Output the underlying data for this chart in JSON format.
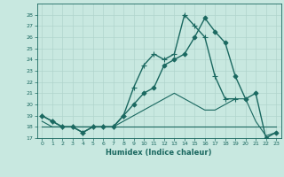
{
  "xlabel": "Humidex (Indice chaleur)",
  "background_color": "#c8e8e0",
  "grid_color": "#b0d4cc",
  "line_color": "#1a6860",
  "ylim": [
    17,
    29
  ],
  "xlim": [
    -0.5,
    23.5
  ],
  "yticks": [
    17,
    18,
    19,
    20,
    21,
    22,
    23,
    24,
    25,
    26,
    27,
    28
  ],
  "xticks": [
    0,
    1,
    2,
    3,
    4,
    5,
    6,
    7,
    8,
    9,
    10,
    11,
    12,
    13,
    14,
    15,
    16,
    17,
    18,
    19,
    20,
    21,
    22,
    23
  ],
  "series": [
    {
      "x": [
        0,
        1,
        2,
        3,
        4,
        5,
        6,
        7,
        8,
        9,
        10,
        11,
        12,
        13,
        14,
        15,
        16,
        17,
        18,
        19,
        20,
        21,
        22,
        23
      ],
      "y": [
        19,
        18.5,
        18,
        18,
        17.5,
        18,
        18,
        18,
        19,
        20,
        21,
        21.5,
        23.5,
        24,
        24.5,
        26,
        27.7,
        26.5,
        25.5,
        22.5,
        20.5,
        21,
        17,
        17.5
      ],
      "marker": "D",
      "markersize": 2.5,
      "linewidth": 1.0
    },
    {
      "x": [
        0,
        1,
        2,
        3,
        4,
        5,
        6,
        7,
        8,
        9,
        10,
        11,
        12,
        13,
        14,
        15,
        16,
        17,
        18,
        19
      ],
      "y": [
        19,
        18.5,
        18,
        18,
        17.5,
        18,
        18,
        18,
        19,
        21.5,
        23.5,
        24.5,
        24,
        24.5,
        28,
        27,
        26,
        22.5,
        20.5,
        20.5
      ],
      "marker": "+",
      "markersize": 4,
      "linewidth": 1.0
    },
    {
      "x": [
        0,
        1,
        2,
        3,
        4,
        5,
        6,
        7,
        8,
        9,
        10,
        11,
        12,
        13,
        14,
        15,
        16,
        17,
        18,
        19,
        20,
        21,
        22,
        23
      ],
      "y": [
        18,
        18,
        18,
        18,
        18,
        18,
        18,
        18,
        18,
        18,
        18,
        18,
        18,
        18,
        18,
        18,
        18,
        18,
        18,
        18,
        18,
        18,
        18,
        18
      ],
      "marker": null,
      "markersize": 0,
      "linewidth": 0.8
    },
    {
      "x": [
        0,
        1,
        2,
        3,
        4,
        5,
        6,
        7,
        8,
        9,
        10,
        11,
        12,
        13,
        14,
        15,
        16,
        17,
        18,
        19,
        20,
        21,
        22,
        23
      ],
      "y": [
        18.5,
        18,
        18,
        18,
        18,
        18,
        18,
        18,
        18.5,
        19,
        19.5,
        20,
        20.5,
        21,
        20.5,
        20,
        19.5,
        19.5,
        20,
        20.5,
        20.5,
        18.5,
        17.2,
        17.5
      ],
      "marker": null,
      "markersize": 0,
      "linewidth": 0.8
    }
  ]
}
